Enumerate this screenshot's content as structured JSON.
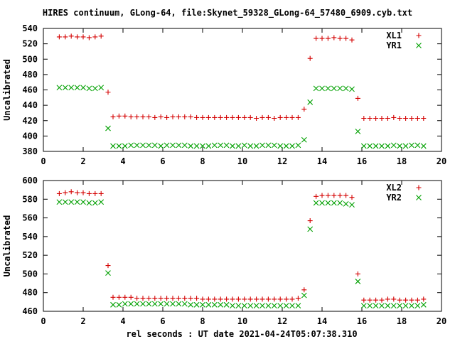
{
  "title": "HIRES continuum, GLong-64, file:Skynet_59328_GLong-64_57480_6909.cyb.txt",
  "xlabel": "rel seconds : UT date 2021-04-24T05:07:38.310",
  "colors": {
    "red": "#d40000",
    "green": "#00a000",
    "frame": "#000000"
  },
  "chart_data": [
    {
      "type": "scatter",
      "ylabel": "Uncalibrated",
      "xlim": [
        0,
        20
      ],
      "ylim": [
        380,
        540
      ],
      "xticks": [
        0,
        2,
        4,
        6,
        8,
        10,
        12,
        14,
        16,
        18,
        20
      ],
      "yticks": [
        380,
        400,
        420,
        440,
        460,
        480,
        500,
        520,
        540
      ],
      "legend": "top-right",
      "series": [
        {
          "name": "XL1",
          "marker": "plus",
          "color": "#d40000",
          "x": [
            0.8,
            1.1,
            1.4,
            1.7,
            2.0,
            2.3,
            2.6,
            2.9,
            3.25,
            3.5,
            3.8,
            4.1,
            4.4,
            4.7,
            5.0,
            5.3,
            5.6,
            5.9,
            6.2,
            6.5,
            6.8,
            7.1,
            7.4,
            7.7,
            8.0,
            8.3,
            8.6,
            8.9,
            9.2,
            9.5,
            9.8,
            10.1,
            10.4,
            10.7,
            11.0,
            11.3,
            11.6,
            11.9,
            12.2,
            12.5,
            12.8,
            13.1,
            13.4,
            13.7,
            14.0,
            14.3,
            14.6,
            14.9,
            15.2,
            15.5,
            15.8,
            16.1,
            16.4,
            16.7,
            17.0,
            17.3,
            17.6,
            17.9,
            18.2,
            18.5,
            18.8,
            19.1
          ],
          "y": [
            529,
            529,
            530,
            529,
            529,
            528,
            529,
            530,
            457,
            425,
            426,
            426,
            425,
            425,
            425,
            425,
            424,
            425,
            424,
            425,
            425,
            425,
            425,
            424,
            424,
            424,
            424,
            424,
            424,
            424,
            424,
            424,
            424,
            423,
            424,
            424,
            423,
            424,
            424,
            424,
            424,
            435,
            501,
            527,
            527,
            527,
            528,
            527,
            527,
            525,
            449,
            423,
            423,
            423,
            423,
            423,
            424,
            423,
            423,
            423,
            423,
            423
          ]
        },
        {
          "name": "YR1",
          "marker": "cross",
          "color": "#00a000",
          "x": [
            0.8,
            1.1,
            1.4,
            1.7,
            2.0,
            2.3,
            2.6,
            2.9,
            3.25,
            3.5,
            3.8,
            4.1,
            4.4,
            4.7,
            5.0,
            5.3,
            5.6,
            5.9,
            6.2,
            6.5,
            6.8,
            7.1,
            7.4,
            7.7,
            8.0,
            8.3,
            8.6,
            8.9,
            9.2,
            9.5,
            9.8,
            10.1,
            10.4,
            10.7,
            11.0,
            11.3,
            11.6,
            11.9,
            12.2,
            12.5,
            12.8,
            13.1,
            13.4,
            13.7,
            14.0,
            14.3,
            14.6,
            14.9,
            15.2,
            15.5,
            15.8,
            16.1,
            16.4,
            16.7,
            17.0,
            17.3,
            17.6,
            17.9,
            18.2,
            18.5,
            18.8,
            19.1
          ],
          "y": [
            463,
            463,
            463,
            463,
            463,
            462,
            462,
            463,
            410,
            387,
            387,
            387,
            388,
            388,
            388,
            388,
            388,
            387,
            388,
            388,
            388,
            388,
            387,
            387,
            387,
            387,
            388,
            388,
            388,
            387,
            387,
            388,
            387,
            387,
            388,
            388,
            388,
            387,
            387,
            387,
            388,
            395,
            444,
            462,
            462,
            462,
            462,
            462,
            462,
            461,
            406,
            387,
            387,
            387,
            387,
            387,
            388,
            387,
            387,
            388,
            388,
            387
          ]
        }
      ]
    },
    {
      "type": "scatter",
      "ylabel": "Uncalibrated",
      "xlim": [
        0,
        20
      ],
      "ylim": [
        460,
        600
      ],
      "xticks": [
        0,
        2,
        4,
        6,
        8,
        10,
        12,
        14,
        16,
        18,
        20
      ],
      "yticks": [
        460,
        480,
        500,
        520,
        540,
        560,
        580,
        600
      ],
      "legend": "top-right",
      "series": [
        {
          "name": "XL2",
          "marker": "plus",
          "color": "#d40000",
          "x": [
            0.8,
            1.1,
            1.4,
            1.7,
            2.0,
            2.3,
            2.6,
            2.9,
            3.25,
            3.5,
            3.8,
            4.1,
            4.4,
            4.7,
            5.0,
            5.3,
            5.6,
            5.9,
            6.2,
            6.5,
            6.8,
            7.1,
            7.4,
            7.7,
            8.0,
            8.3,
            8.6,
            8.9,
            9.2,
            9.5,
            9.8,
            10.1,
            10.4,
            10.7,
            11.0,
            11.3,
            11.6,
            11.9,
            12.2,
            12.5,
            12.8,
            13.1,
            13.4,
            13.7,
            14.0,
            14.3,
            14.6,
            14.9,
            15.2,
            15.5,
            15.8,
            16.1,
            16.4,
            16.7,
            17.0,
            17.3,
            17.6,
            17.9,
            18.2,
            18.5,
            18.8,
            19.1
          ],
          "y": [
            586,
            587,
            588,
            587,
            587,
            586,
            586,
            586,
            509,
            475,
            475,
            475,
            475,
            474,
            474,
            474,
            474,
            474,
            474,
            474,
            474,
            474,
            474,
            474,
            473,
            473,
            473,
            473,
            473,
            473,
            473,
            473,
            473,
            473,
            473,
            473,
            473,
            473,
            473,
            473,
            474,
            483,
            557,
            583,
            584,
            584,
            584,
            584,
            584,
            582,
            500,
            472,
            472,
            472,
            472,
            473,
            473,
            472,
            472,
            472,
            472,
            473
          ]
        },
        {
          "name": "YR2",
          "marker": "cross",
          "color": "#00a000",
          "x": [
            0.8,
            1.1,
            1.4,
            1.7,
            2.0,
            2.3,
            2.6,
            2.9,
            3.25,
            3.5,
            3.8,
            4.1,
            4.4,
            4.7,
            5.0,
            5.3,
            5.6,
            5.9,
            6.2,
            6.5,
            6.8,
            7.1,
            7.4,
            7.7,
            8.0,
            8.3,
            8.6,
            8.9,
            9.2,
            9.5,
            9.8,
            10.1,
            10.4,
            10.7,
            11.0,
            11.3,
            11.6,
            11.9,
            12.2,
            12.5,
            12.8,
            13.1,
            13.4,
            13.7,
            14.0,
            14.3,
            14.6,
            14.9,
            15.2,
            15.5,
            15.8,
            16.1,
            16.4,
            16.7,
            17.0,
            17.3,
            17.6,
            17.9,
            18.2,
            18.5,
            18.8,
            19.1
          ],
          "y": [
            577,
            577,
            577,
            577,
            577,
            576,
            576,
            577,
            501,
            467,
            467,
            468,
            468,
            468,
            468,
            468,
            468,
            468,
            468,
            468,
            468,
            468,
            467,
            467,
            467,
            467,
            467,
            467,
            467,
            466,
            466,
            466,
            466,
            466,
            466,
            466,
            466,
            466,
            466,
            466,
            466,
            477,
            548,
            576,
            576,
            576,
            576,
            576,
            575,
            574,
            492,
            466,
            466,
            466,
            466,
            466,
            466,
            466,
            466,
            466,
            466,
            467
          ]
        }
      ]
    }
  ]
}
